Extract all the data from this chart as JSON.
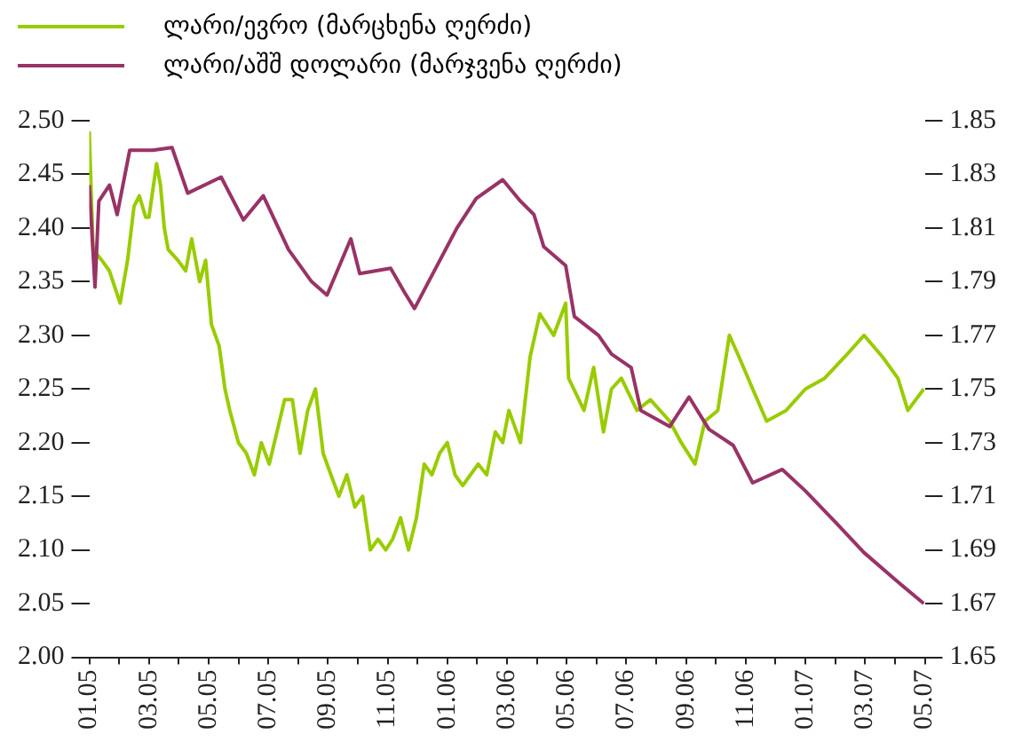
{
  "chart_data": {
    "type": "line",
    "legend": "top left",
    "xlim": [
      "2005-01-01",
      "2007-05-01"
    ],
    "xticks": [
      {
        "value": "2005-01-01",
        "label": "01.05"
      },
      {
        "value": "2005-02-01",
        "label": null
      },
      {
        "value": "2005-03-01",
        "label": "03.05"
      },
      {
        "value": "2005-04-01",
        "label": null
      },
      {
        "value": "2005-05-01",
        "label": "05.05"
      },
      {
        "value": "2005-06-01",
        "label": null
      },
      {
        "value": "2005-07-01",
        "label": "07.05"
      },
      {
        "value": "2005-08-01",
        "label": null
      },
      {
        "value": "2005-09-01",
        "label": "09.05"
      },
      {
        "value": "2005-10-01",
        "label": null
      },
      {
        "value": "2005-11-01",
        "label": "11.05"
      },
      {
        "value": "2005-12-01",
        "label": null
      },
      {
        "value": "2006-01-01",
        "label": "01.06"
      },
      {
        "value": "2006-02-01",
        "label": null
      },
      {
        "value": "2006-03-01",
        "label": "03.06"
      },
      {
        "value": "2006-04-01",
        "label": null
      },
      {
        "value": "2006-05-01",
        "label": "05.06"
      },
      {
        "value": "2006-06-01",
        "label": null
      },
      {
        "value": "2006-07-01",
        "label": "07.06"
      },
      {
        "value": "2006-08-01",
        "label": null
      },
      {
        "value": "2006-09-01",
        "label": "09.06"
      },
      {
        "value": "2006-10-01",
        "label": null
      },
      {
        "value": "2006-11-01",
        "label": "11.06"
      },
      {
        "value": "2006-12-01",
        "label": null
      },
      {
        "value": "2007-01-01",
        "label": "01.07"
      },
      {
        "value": "2007-02-01",
        "label": null
      },
      {
        "value": "2007-03-01",
        "label": "03.07"
      },
      {
        "value": "2007-04-01",
        "label": null
      },
      {
        "value": "2007-05-01",
        "label": "05.07"
      }
    ],
    "ylim": [
      2.0,
      2.5
    ],
    "yticks": [
      {
        "value": 2.0,
        "label": "2.00"
      },
      {
        "value": 2.05,
        "label": "2.05"
      },
      {
        "value": 2.1,
        "label": "2.10"
      },
      {
        "value": 2.15,
        "label": "2.15"
      },
      {
        "value": 2.2,
        "label": "2.20"
      },
      {
        "value": 2.25,
        "label": "2.25"
      },
      {
        "value": 2.3,
        "label": "2.30"
      },
      {
        "value": 2.35,
        "label": "2.35"
      },
      {
        "value": 2.4,
        "label": "2.40"
      },
      {
        "value": 2.45,
        "label": "2.45"
      },
      {
        "value": 2.5,
        "label": "2.50"
      }
    ],
    "y2lim": [
      1.65,
      1.85
    ],
    "y2ticks": [
      1.65,
      1.67,
      1.69,
      1.71,
      1.73,
      1.75,
      1.77,
      1.79,
      1.81,
      1.83,
      1.85
    ],
    "series": [
      {
        "name": "ლარი/ევრო (მარცხენა ღერძი)",
        "color": "#99cc00",
        "x": [
          "2005-01-01",
          "2005-01-05",
          "2005-01-14",
          "2005-01-22",
          "2005-02-02",
          "2005-02-09",
          "2005-02-15",
          "2005-02-20",
          "2005-02-26",
          "2005-03-01",
          "2005-03-09",
          "2005-03-13",
          "2005-03-17",
          "2005-03-21",
          "2005-03-31",
          "2005-04-08",
          "2005-04-14",
          "2005-04-22",
          "2005-04-28",
          "2005-05-04",
          "2005-05-12",
          "2005-05-18",
          "2005-05-23",
          "2005-06-01",
          "2005-06-09",
          "2005-06-17",
          "2005-06-24",
          "2005-07-02",
          "2005-07-10",
          "2005-07-18",
          "2005-07-26",
          "2005-08-03",
          "2005-08-11",
          "2005-08-19",
          "2005-08-27",
          "2005-09-04",
          "2005-09-12",
          "2005-09-20",
          "2005-09-28",
          "2005-10-06",
          "2005-10-14",
          "2005-10-22",
          "2005-10-30",
          "2005-11-06",
          "2005-11-14",
          "2005-11-22",
          "2005-11-30",
          "2005-12-08",
          "2005-12-16",
          "2005-12-24",
          "2006-01-01",
          "2006-01-09",
          "2006-01-17",
          "2006-01-25",
          "2006-02-02",
          "2006-02-10",
          "2006-02-18",
          "2006-02-25",
          "2006-03-03",
          "2006-03-11",
          "2006-03-15",
          "2006-03-25",
          "2006-04-04",
          "2006-04-18",
          "2006-04-30",
          "2006-05-03",
          "2006-05-19",
          "2006-05-29",
          "2006-06-08",
          "2006-06-16",
          "2006-06-26",
          "2006-07-12",
          "2006-07-26",
          "2006-08-15",
          "2006-08-27",
          "2006-09-10",
          "2006-09-20",
          "2006-10-03",
          "2006-10-15",
          "2006-10-25",
          "2006-11-08",
          "2006-11-22",
          "2006-12-12",
          "2007-01-01",
          "2007-01-21",
          "2007-02-10",
          "2007-02-28",
          "2007-03-19",
          "2007-04-04",
          "2007-04-14",
          "2007-04-30"
        ],
        "values": [
          2.49,
          2.38,
          2.37,
          2.36,
          2.33,
          2.37,
          2.42,
          2.43,
          2.41,
          2.41,
          2.46,
          2.44,
          2.4,
          2.38,
          2.37,
          2.36,
          2.39,
          2.35,
          2.37,
          2.31,
          2.29,
          2.25,
          2.23,
          2.2,
          2.19,
          2.17,
          2.2,
          2.18,
          2.21,
          2.24,
          2.24,
          2.19,
          2.23,
          2.25,
          2.19,
          2.17,
          2.15,
          2.17,
          2.14,
          2.15,
          2.1,
          2.11,
          2.1,
          2.11,
          2.13,
          2.1,
          2.13,
          2.18,
          2.17,
          2.19,
          2.2,
          2.17,
          2.16,
          2.17,
          2.18,
          2.17,
          2.21,
          2.2,
          2.23,
          2.21,
          2.2,
          2.28,
          2.32,
          2.3,
          2.33,
          2.26,
          2.23,
          2.27,
          2.21,
          2.25,
          2.26,
          2.23,
          2.24,
          2.22,
          2.2,
          2.18,
          2.22,
          2.23,
          2.3,
          2.28,
          2.25,
          2.22,
          2.23,
          2.25,
          2.26,
          2.28,
          2.3,
          2.28,
          2.26,
          2.23,
          2.25
        ]
      },
      {
        "name": "ლარი/აშშ დოლარი (მარჯვენა ღერძი)",
        "color": "#993366",
        "axis": "y2",
        "x": [
          "2005-01-01",
          "2005-01-07",
          "2005-01-11",
          "2005-01-22",
          "2005-01-30",
          "2005-02-11",
          "2005-03-05",
          "2005-03-25",
          "2005-04-10",
          "2005-05-14",
          "2005-06-06",
          "2005-06-26",
          "2005-07-22",
          "2005-08-15",
          "2005-08-31",
          "2005-09-24",
          "2005-10-03",
          "2005-11-04",
          "2005-11-18",
          "2005-11-28",
          "2005-12-14",
          "2006-01-11",
          "2006-01-31",
          "2006-02-25",
          "2006-03-15",
          "2006-03-29",
          "2006-04-08",
          "2006-04-30",
          "2006-05-09",
          "2006-06-03",
          "2006-06-16",
          "2006-07-06",
          "2006-07-16",
          "2006-08-15",
          "2006-09-04",
          "2006-09-24",
          "2006-10-19",
          "2006-11-08",
          "2006-12-08",
          "2007-01-01",
          "2007-02-02",
          "2007-02-28",
          "2007-04-01",
          "2007-04-30"
        ],
        "values": [
          1.826,
          1.788,
          1.82,
          1.826,
          1.815,
          1.839,
          1.839,
          1.84,
          1.823,
          1.829,
          1.813,
          1.822,
          1.802,
          1.79,
          1.785,
          1.806,
          1.793,
          1.795,
          1.786,
          1.78,
          1.791,
          1.81,
          1.821,
          1.828,
          1.82,
          1.815,
          1.803,
          1.796,
          1.777,
          1.77,
          1.763,
          1.758,
          1.742,
          1.736,
          1.747,
          1.735,
          1.729,
          1.715,
          1.72,
          1.712,
          1.7,
          1.689,
          1.679,
          1.67
        ]
      }
    ]
  }
}
